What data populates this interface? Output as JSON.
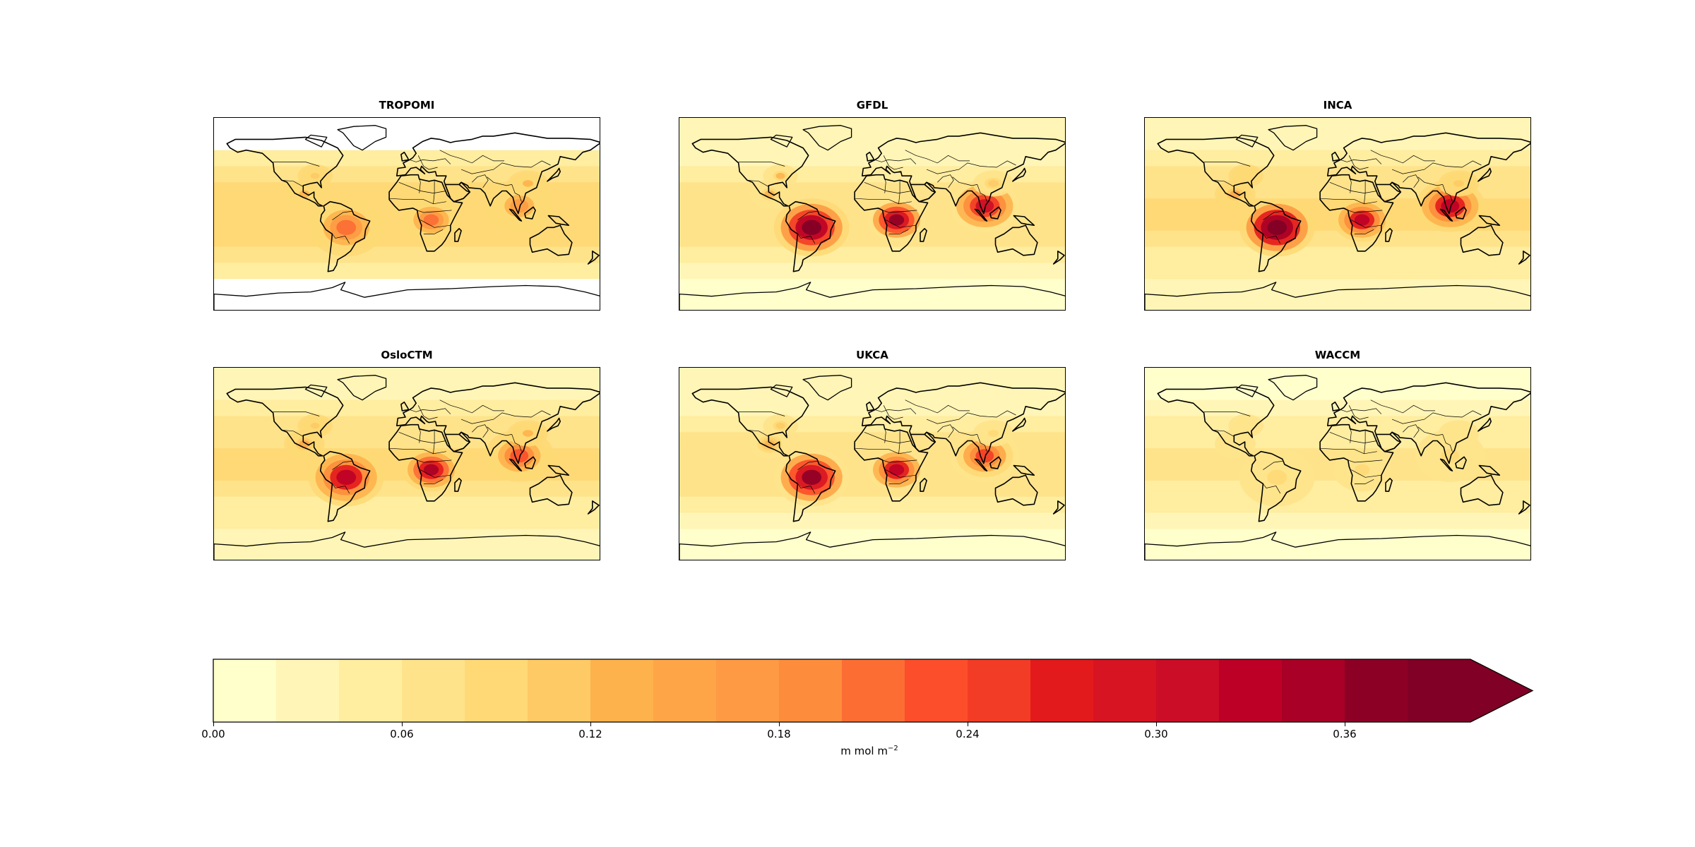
{
  "chart_data": {
    "type": "heatmap",
    "panels": [
      {
        "title": "TROPOMI",
        "observation": true,
        "intensity": {
          "amazon": 0.2,
          "central_africa": 0.2,
          "southeast_asia": 0.16,
          "mexico": 0.12,
          "eastern_us": 0.1,
          "east_asia": 0.12,
          "tropical_band": 0.09
        }
      },
      {
        "title": "GFDL",
        "observation": false,
        "intensity": {
          "amazon": 0.4,
          "central_africa": 0.36,
          "southeast_asia": 0.3,
          "mexico": 0.12,
          "eastern_us": 0.12,
          "east_asia": 0.1,
          "tropical_band": 0.07
        }
      },
      {
        "title": "INCA",
        "observation": false,
        "intensity": {
          "amazon": 0.42,
          "central_africa": 0.32,
          "southeast_asia": 0.32,
          "mexico": 0.14,
          "eastern_us": 0.09,
          "east_asia": 0.1,
          "tropical_band": 0.08
        }
      },
      {
        "title": "OsloCTM",
        "observation": false,
        "intensity": {
          "amazon": 0.32,
          "central_africa": 0.34,
          "southeast_asia": 0.22,
          "mexico": 0.14,
          "eastern_us": 0.1,
          "east_asia": 0.12,
          "tropical_band": 0.08
        }
      },
      {
        "title": "UKCA",
        "observation": false,
        "intensity": {
          "amazon": 0.36,
          "central_africa": 0.32,
          "southeast_asia": 0.24,
          "mexico": 0.13,
          "eastern_us": 0.1,
          "east_asia": 0.08,
          "tropical_band": 0.07
        }
      },
      {
        "title": "WACCM",
        "observation": false,
        "intensity": {
          "amazon": 0.09,
          "central_africa": 0.08,
          "southeast_asia": 0.09,
          "mexico": 0.07,
          "eastern_us": 0.06,
          "east_asia": 0.06,
          "tropical_band": 0.06
        }
      }
    ],
    "colorbar": {
      "min": 0.0,
      "max": 0.4,
      "step": 0.02,
      "extend": "max",
      "ticks": [
        "0.00",
        "0.06",
        "0.12",
        "0.18",
        "0.24",
        "0.30",
        "0.36"
      ],
      "unit_base": "m mol m",
      "unit_exp": "−2",
      "colors": [
        "#ffffcc",
        "#fff5b6",
        "#ffeda0",
        "#fee38b",
        "#fed976",
        "#feca66",
        "#feb24c",
        "#fea647",
        "#fd9a43",
        "#fd8d3c",
        "#fc6d34",
        "#fc4e2a",
        "#f33c25",
        "#e31a1c",
        "#d71422",
        "#cb0d27",
        "#bd0026",
        "#a80026",
        "#8d0026",
        "#800026"
      ]
    }
  }
}
